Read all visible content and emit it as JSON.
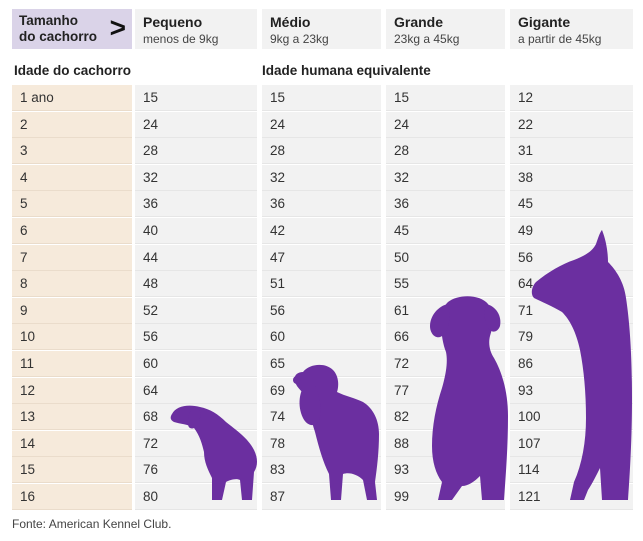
{
  "header": {
    "corner_label": "Tamanho do cachorro",
    "arrow": ">",
    "columns": [
      {
        "name": "Pequeno",
        "range": "menos de 9kg"
      },
      {
        "name": "Médio",
        "range": "9kg a 23kg"
      },
      {
        "name": "Grande",
        "range": "23kg a 45kg"
      },
      {
        "name": "Gigante",
        "range": "a partir de 45kg"
      }
    ]
  },
  "labels": {
    "dog_age": "Idade do cachorro",
    "human_age": "Idade humana equivalente"
  },
  "rows": [
    {
      "dog_age": "1 ano",
      "values": [
        "15",
        "15",
        "15",
        "12"
      ]
    },
    {
      "dog_age": "2",
      "values": [
        "24",
        "24",
        "24",
        "22"
      ]
    },
    {
      "dog_age": "3",
      "values": [
        "28",
        "28",
        "28",
        "31"
      ]
    },
    {
      "dog_age": "4",
      "values": [
        "32",
        "32",
        "32",
        "38"
      ]
    },
    {
      "dog_age": "5",
      "values": [
        "36",
        "36",
        "36",
        "45"
      ]
    },
    {
      "dog_age": "6",
      "values": [
        "40",
        "42",
        "45",
        "49"
      ]
    },
    {
      "dog_age": "7",
      "values": [
        "44",
        "47",
        "50",
        "56"
      ]
    },
    {
      "dog_age": "8",
      "values": [
        "48",
        "51",
        "55",
        "64"
      ]
    },
    {
      "dog_age": "9",
      "values": [
        "52",
        "56",
        "61",
        "71"
      ]
    },
    {
      "dog_age": "10",
      "values": [
        "56",
        "60",
        "66",
        "79"
      ]
    },
    {
      "dog_age": "11",
      "values": [
        "60",
        "65",
        "72",
        "86"
      ]
    },
    {
      "dog_age": "12",
      "values": [
        "64",
        "69",
        "77",
        "93"
      ]
    },
    {
      "dog_age": "13",
      "values": [
        "68",
        "74",
        "82",
        "100"
      ]
    },
    {
      "dog_age": "14",
      "values": [
        "72",
        "78",
        "88",
        "107"
      ]
    },
    {
      "dog_age": "15",
      "values": [
        "76",
        "83",
        "93",
        "114"
      ]
    },
    {
      "dog_age": "16",
      "values": [
        "80",
        "87",
        "99",
        "121"
      ]
    }
  ],
  "source": "Fonte: American Kennel Club.",
  "colors": {
    "dog_silhouette": "#6b2fa0",
    "corner_header_bg": "#dad3e8",
    "dog_age_column_bg": "#f6eadb",
    "cell_bg": "#f2f2f2"
  },
  "illustrations": [
    {
      "icon": "dachshund-icon",
      "column": "Pequeno"
    },
    {
      "icon": "spaniel-icon",
      "column": "Médio"
    },
    {
      "icon": "labrador-icon",
      "column": "Grande"
    },
    {
      "icon": "great-dane-icon",
      "column": "Gigante"
    }
  ]
}
